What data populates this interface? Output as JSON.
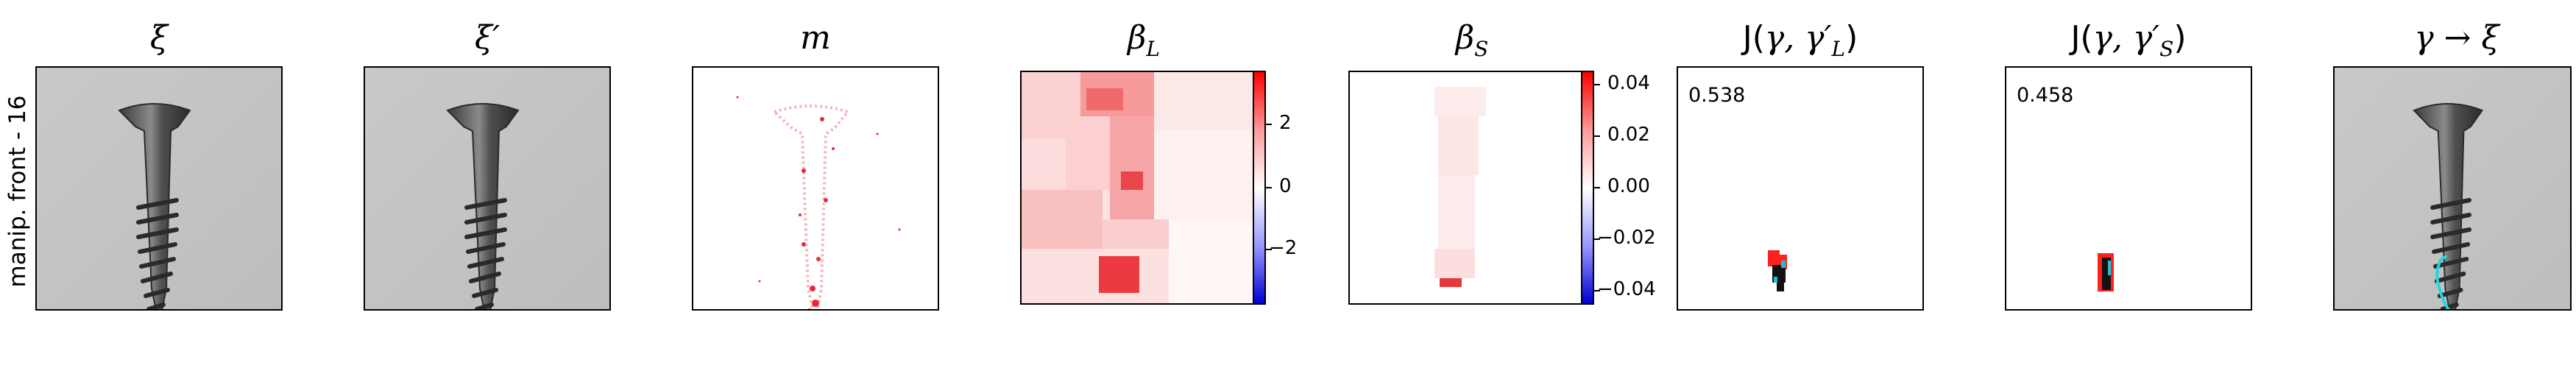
{
  "row_label": "manip. front - 16",
  "panels": {
    "xi": {
      "title": "ξ"
    },
    "xi_prime": {
      "title": "ξ′"
    },
    "m": {
      "title": "m"
    },
    "beta_L": {
      "title_main": "β",
      "title_sub": "L",
      "colorbar_ticks": [
        "2",
        "0",
        "−2"
      ]
    },
    "beta_S": {
      "title_main": "β",
      "title_sub": "S",
      "colorbar_ticks": [
        "0.04",
        "0.02",
        "0.00",
        "−0.02",
        "−0.04"
      ]
    },
    "J_L": {
      "title": "J(γ, γ′L)",
      "title_pre": "J(",
      "title_gamma": "γ, γ′",
      "title_sub": "L",
      "title_post": ")",
      "value": "0.538"
    },
    "J_S": {
      "title_pre": "J(",
      "title_gamma": "γ, γ′",
      "title_sub": "S",
      "title_post": ")",
      "value": "0.458"
    },
    "gamma_xi": {
      "title": "γ → ξ"
    }
  }
}
